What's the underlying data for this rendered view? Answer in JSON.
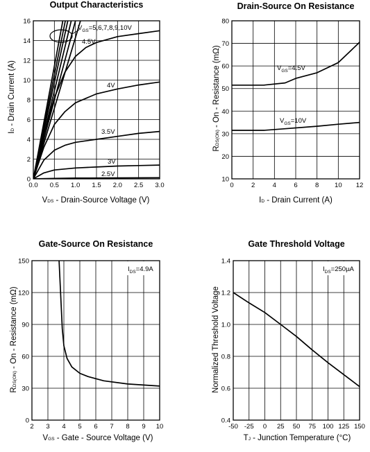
{
  "chart_data": [
    {
      "id": "oc",
      "type": "line",
      "title": "Output Characteristics",
      "xlabel_main": "V",
      "xlabel_sub": "DS",
      "xlabel_rest": " - Drain-Source Voltage (V)",
      "ylabel_main": "I",
      "ylabel_sub": "D",
      "ylabel_rest": " - Drain Current (A)",
      "xlim": [
        0,
        3.0
      ],
      "ylim": [
        0,
        16
      ],
      "xticks": [
        0,
        0.5,
        1.0,
        1.5,
        2.0,
        2.5,
        3.0
      ],
      "xtick_labels": [
        "0.0",
        "0.5",
        "1.0",
        "1.5",
        "2.0",
        "2.5",
        "3.0"
      ],
      "yticks": [
        0,
        2,
        4,
        6,
        8,
        10,
        12,
        14,
        16
      ],
      "ytick_labels": [
        "0",
        "2",
        "4",
        "6",
        "8",
        "10",
        "12",
        "14",
        "16"
      ],
      "grid": true,
      "series": [
        {
          "name": "V_GS=5,6,7,8,9,10V",
          "x": [
            0,
            0.7
          ],
          "y": [
            0,
            16
          ]
        },
        {
          "name": "",
          "x": [
            0,
            0.76
          ],
          "y": [
            0,
            16
          ]
        },
        {
          "name": "",
          "x": [
            0,
            0.82
          ],
          "y": [
            0,
            16
          ]
        },
        {
          "name": "",
          "x": [
            0,
            0.9
          ],
          "y": [
            0,
            16
          ]
        },
        {
          "name": "",
          "x": [
            0,
            1.0
          ],
          "y": [
            0,
            16
          ]
        },
        {
          "name": "",
          "x": [
            0,
            1.12
          ],
          "y": [
            0,
            16
          ]
        },
        {
          "name": "4.5V",
          "x": [
            0,
            0.25,
            0.5,
            0.75,
            1.0,
            1.25,
            1.5,
            2.0,
            2.5,
            3.0
          ],
          "y": [
            0,
            4.5,
            8.2,
            10.8,
            12.4,
            13.3,
            13.8,
            14.4,
            14.7,
            15.0
          ]
        },
        {
          "name": "4V",
          "x": [
            0,
            0.25,
            0.5,
            0.75,
            1.0,
            1.5,
            2.0,
            2.5,
            3.0
          ],
          "y": [
            0,
            3.2,
            5.5,
            6.8,
            7.7,
            8.6,
            9.1,
            9.5,
            9.8
          ]
        },
        {
          "name": "3.5V",
          "x": [
            0,
            0.25,
            0.5,
            0.75,
            1.0,
            1.5,
            2.0,
            2.5,
            3.0
          ],
          "y": [
            0,
            1.9,
            2.9,
            3.4,
            3.7,
            4.0,
            4.3,
            4.6,
            4.8
          ]
        },
        {
          "name": "3V",
          "x": [
            0,
            0.25,
            0.5,
            1.0,
            1.5,
            2.0,
            2.5,
            3.0
          ],
          "y": [
            0,
            0.6,
            0.9,
            1.1,
            1.2,
            1.3,
            1.35,
            1.4
          ]
        },
        {
          "name": "2.5V",
          "x": [
            0,
            0.5,
            1.0,
            2.0,
            3.0
          ],
          "y": [
            0,
            0.05,
            0.08,
            0.1,
            0.12
          ]
        }
      ],
      "annotations": [
        {
          "main": "V",
          "sub": "GS",
          "rest": "=5,6,7,8,9,10V"
        },
        {
          "main": "4.5V"
        },
        {
          "main": "4V"
        },
        {
          "main": "3.5V"
        },
        {
          "main": "3V"
        },
        {
          "main": "2.5V"
        }
      ]
    },
    {
      "id": "dsr",
      "type": "line",
      "title": "Drain-Source On Resistance",
      "xlabel_main": "I",
      "xlabel_sub": "D",
      "xlabel_rest": " - Drain Current (A)",
      "ylabel_main": "R",
      "ylabel_sub": "DS(ON)",
      "ylabel_rest": " - On - Resistance (mΩ)",
      "xlim": [
        0,
        12
      ],
      "ylim": [
        10,
        80
      ],
      "xticks": [
        0,
        2,
        4,
        6,
        8,
        10,
        12
      ],
      "xtick_labels": [
        "0",
        "2",
        "4",
        "6",
        "8",
        "10",
        "12"
      ],
      "yticks": [
        10,
        20,
        30,
        40,
        50,
        60,
        70,
        80
      ],
      "ytick_labels": [
        "10",
        "20",
        "30",
        "40",
        "50",
        "60",
        "70",
        "80"
      ],
      "grid": true,
      "series": [
        {
          "name": "V_GS=4.5V",
          "x": [
            0,
            3,
            5,
            6,
            8,
            10,
            11,
            12
          ],
          "y": [
            51.5,
            51.5,
            52.5,
            54.5,
            57,
            61.5,
            66,
            70.5
          ]
        },
        {
          "name": "V_GS=10V",
          "x": [
            0,
            3,
            5,
            8,
            10,
            12
          ],
          "y": [
            31.5,
            31.5,
            32.2,
            33.3,
            34.2,
            35
          ]
        }
      ],
      "annotations": [
        {
          "main": "V",
          "sub": "GS",
          "rest": "=4.5V"
        },
        {
          "main": "V",
          "sub": "GS",
          "rest": "=10V"
        }
      ]
    },
    {
      "id": "gsr",
      "type": "line",
      "title": "Gate-Source On Resistance",
      "xlabel_main": "V",
      "xlabel_sub": "GS",
      "xlabel_rest": " - Gate - Source Voltage (V)",
      "ylabel_main": "R",
      "ylabel_sub": "DS(ON)",
      "ylabel_rest": " - On - Resistance (mΩ)",
      "xlim": [
        2,
        10
      ],
      "ylim": [
        0,
        150
      ],
      "xticks": [
        2,
        3,
        4,
        5,
        6,
        7,
        8,
        9,
        10
      ],
      "xtick_labels": [
        "2",
        "3",
        "4",
        "5",
        "6",
        "7",
        "8",
        "9",
        "10"
      ],
      "yticks": [
        0,
        30,
        60,
        90,
        120,
        150
      ],
      "ytick_labels": [
        "0",
        "30",
        "60",
        "90",
        "120",
        "150"
      ],
      "grid": true,
      "series": [
        {
          "name": "I_DS=4.9A",
          "x": [
            3.7,
            3.8,
            3.9,
            4.0,
            4.2,
            4.5,
            5.0,
            5.5,
            6.5,
            8.0,
            10.0
          ],
          "y": [
            150,
            118,
            86,
            70,
            58,
            50,
            44,
            41,
            37,
            34,
            32
          ]
        }
      ],
      "annotations": [
        {
          "main": "I",
          "sub": "DS",
          "rest": "=4.9A"
        }
      ]
    },
    {
      "id": "gtv",
      "type": "line",
      "title": "Gate Threshold Voltage",
      "xlabel_main": "T",
      "xlabel_sub": "J",
      "xlabel_rest": " - Junction Temperature (°C)",
      "ylabel_main": "Normalized Threshold Voltage",
      "ylabel_sub": "",
      "ylabel_rest": "",
      "xlim": [
        -50,
        150
      ],
      "ylim": [
        0.4,
        1.4
      ],
      "xticks": [
        -50,
        -25,
        0,
        25,
        50,
        75,
        100,
        125,
        150
      ],
      "xtick_labels": [
        "-50",
        "-25",
        "0",
        "25",
        "50",
        "75",
        "100",
        "125",
        "150"
      ],
      "yticks": [
        0.4,
        0.6,
        0.8,
        1.0,
        1.2,
        1.4
      ],
      "ytick_labels": [
        "0.4",
        "0.6",
        "0.8",
        "1.0",
        "1.2",
        "1.4"
      ],
      "grid": true,
      "series": [
        {
          "name": "I_DS=250µA",
          "x": [
            -50,
            -25,
            0,
            25,
            50,
            75,
            100,
            125,
            150
          ],
          "y": [
            1.2,
            1.135,
            1.075,
            1.0,
            0.925,
            0.84,
            0.76,
            0.685,
            0.61
          ]
        }
      ],
      "annotations": [
        {
          "main": "I",
          "sub": "DS",
          "rest": "=250µA"
        }
      ]
    }
  ]
}
